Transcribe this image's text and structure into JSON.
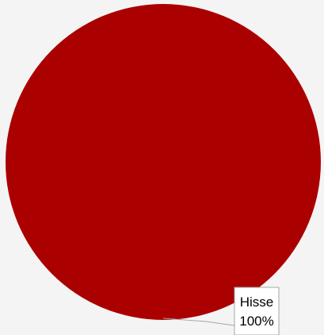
{
  "chart_data": {
    "type": "pie",
    "categories": [
      "Hisse"
    ],
    "values": [
      100
    ],
    "data_labels": [
      {
        "category": "Hisse",
        "percent": "100%"
      }
    ],
    "colors": {
      "slice": "#aa0000",
      "background": "#f4f4f4",
      "label_box_fill": "#ffffff",
      "label_box_border": "#a6a6a6",
      "leader_line": "#a6a6a6"
    },
    "legend": "none",
    "title": ""
  }
}
